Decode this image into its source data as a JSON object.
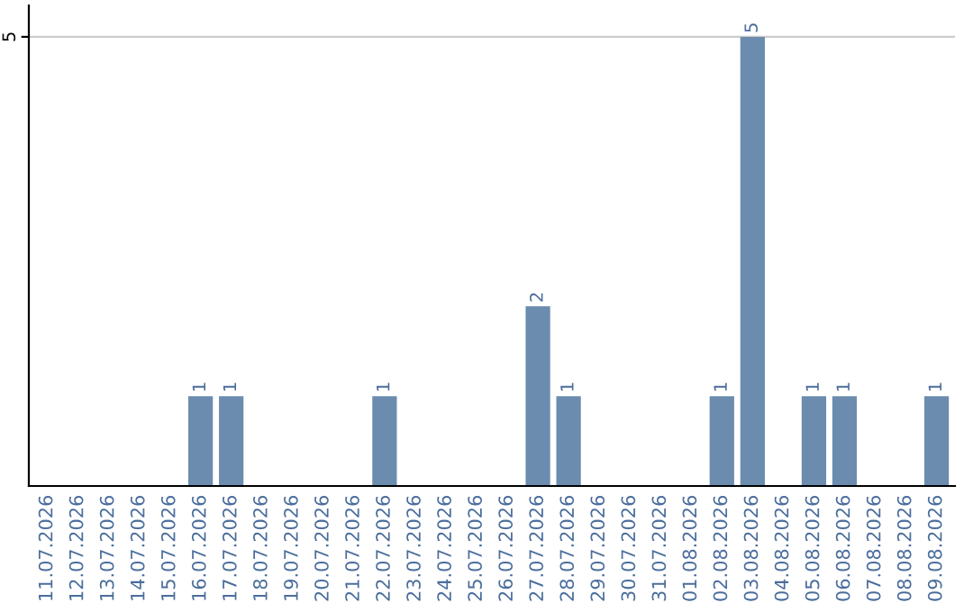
{
  "chart_data": {
    "type": "bar",
    "categories": [
      "11.07.2026",
      "12.07.2026",
      "13.07.2026",
      "14.07.2026",
      "15.07.2026",
      "16.07.2026",
      "17.07.2026",
      "18.07.2026",
      "19.07.2026",
      "20.07.2026",
      "21.07.2026",
      "22.07.2026",
      "23.07.2026",
      "24.07.2026",
      "25.07.2026",
      "26.07.2026",
      "27.07.2026",
      "28.07.2026",
      "29.07.2026",
      "30.07.2026",
      "31.07.2026",
      "01.08.2026",
      "02.08.2026",
      "03.08.2026",
      "04.08.2026",
      "05.08.2026",
      "06.08.2026",
      "07.08.2026",
      "08.08.2026",
      "09.08.2026"
    ],
    "values": [
      0,
      0,
      0,
      0,
      0,
      1,
      1,
      0,
      0,
      0,
      0,
      1,
      0,
      0,
      0,
      0,
      2,
      1,
      0,
      0,
      0,
      0,
      1,
      5,
      0,
      1,
      1,
      0,
      0,
      1
    ],
    "value_labels": [
      null,
      null,
      null,
      null,
      null,
      "1",
      "1",
      null,
      null,
      null,
      null,
      "1",
      null,
      null,
      null,
      null,
      "2",
      "1",
      null,
      null,
      null,
      null,
      "1",
      "5",
      null,
      "1",
      "1",
      null,
      null,
      "1"
    ],
    "color": "#6b8cae",
    "ylim": [
      0,
      5.35
    ],
    "yticks": [
      5
    ],
    "grid": "y"
  }
}
